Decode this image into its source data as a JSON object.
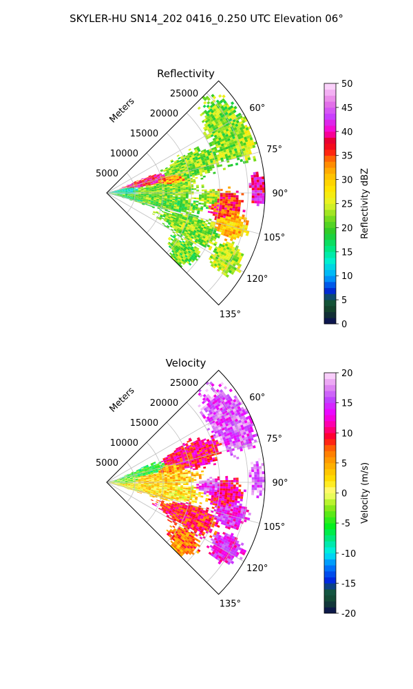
{
  "figure": {
    "suptitle": "SKYLER-HU  SN14_202  0416_0.250 UTC Elevation 06°"
  },
  "chart_data": [
    {
      "type": "heatmap",
      "projection": "polar-sector",
      "title": "Reflectivity",
      "range_label": "Meters",
      "range_ticks": [
        5000,
        10000,
        15000,
        20000,
        25000
      ],
      "azimuth_ticks": [
        "60°",
        "75°",
        "90°",
        "105°",
        "120°",
        "135°"
      ],
      "azimuth_range_deg": [
        45,
        135
      ],
      "grid": true,
      "colorbar": {
        "label": "Reflectivity dBZ",
        "min": 0,
        "max": 50,
        "ticks": [
          0,
          5,
          10,
          15,
          20,
          25,
          30,
          35,
          40,
          45,
          50
        ],
        "colormap": "pyart_NWSRef",
        "placement": "right"
      }
    },
    {
      "type": "heatmap",
      "projection": "polar-sector",
      "title": "Velocity",
      "range_label": "Meters",
      "range_ticks": [
        5000,
        10000,
        15000,
        20000,
        25000
      ],
      "azimuth_ticks": [
        "60°",
        "75°",
        "90°",
        "105°",
        "120°",
        "135°"
      ],
      "azimuth_range_deg": [
        45,
        135
      ],
      "grid": true,
      "colorbar": {
        "label": "Velocity (m/s)",
        "min": -20,
        "max": 20,
        "ticks": [
          -20,
          -15,
          -10,
          -5,
          0,
          5,
          10,
          15,
          20
        ],
        "colormap": "pyart_NWSVel",
        "placement": "right"
      }
    }
  ],
  "colors": {
    "grid": "#bfbfbf",
    "frame": "#000000"
  }
}
